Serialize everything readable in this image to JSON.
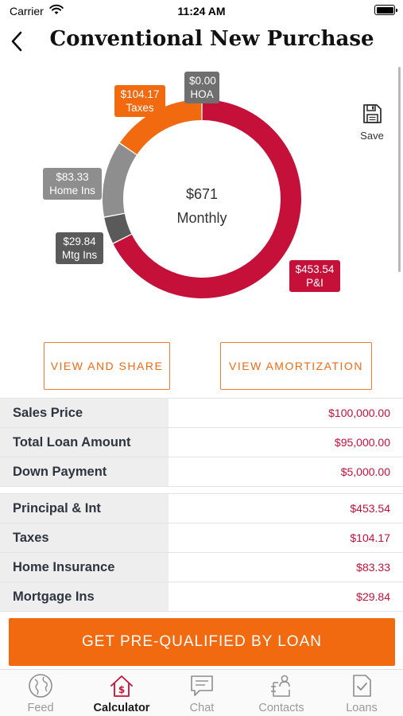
{
  "status_bar": {
    "carrier": "Carrier",
    "time": "11:24 AM"
  },
  "header": {
    "title": "Conventional New Purchase"
  },
  "save": {
    "label": "Save"
  },
  "chart_data": {
    "type": "pie",
    "center_value": "$671",
    "center_caption": "Monthly",
    "slices": [
      {
        "name": "P&I",
        "label": "$453.54",
        "value": 453.54,
        "color": "#c5103a"
      },
      {
        "name": "Mtg Ins",
        "label": "$29.84",
        "value": 29.84,
        "color": "#5a5a5a"
      },
      {
        "name": "Home Ins",
        "label": "$83.33",
        "value": 83.33,
        "color": "#8e8e8e"
      },
      {
        "name": "Taxes",
        "label": "$104.17",
        "value": 104.17,
        "color": "#f26a10"
      },
      {
        "name": "HOA",
        "label": "$0.00",
        "value": 0,
        "color": "#6f6f6f"
      }
    ]
  },
  "actions": {
    "view_share": "VIEW AND SHARE",
    "view_amortization": "VIEW AMORTIZATION"
  },
  "loan_rows": [
    {
      "label": "Sales Price",
      "value": "$100,000.00"
    },
    {
      "label": "Total Loan Amount",
      "value": "$95,000.00"
    },
    {
      "label": "Down Payment",
      "value": "$5,000.00"
    }
  ],
  "payment_rows": [
    {
      "label": "Principal & Int",
      "value": "$453.54"
    },
    {
      "label": "Taxes",
      "value": "$104.17"
    },
    {
      "label": "Home Insurance",
      "value": "$83.33"
    },
    {
      "label": "Mortgage Ins",
      "value": "$29.84"
    }
  ],
  "cta": {
    "label": "GET PRE-QUALIFIED BY LOAN"
  },
  "tabs": [
    {
      "label": "Feed",
      "icon": "globe-icon",
      "active": false
    },
    {
      "label": "Calculator",
      "icon": "house-dollar-icon",
      "active": true
    },
    {
      "label": "Chat",
      "icon": "chat-bubble-icon",
      "active": false
    },
    {
      "label": "Contacts",
      "icon": "contacts-icon",
      "active": false
    },
    {
      "label": "Loans",
      "icon": "document-check-icon",
      "active": false
    }
  ],
  "colors": {
    "accent": "#f26a10",
    "value_text": "#c5103a",
    "label_bg": "#eeeeee"
  }
}
